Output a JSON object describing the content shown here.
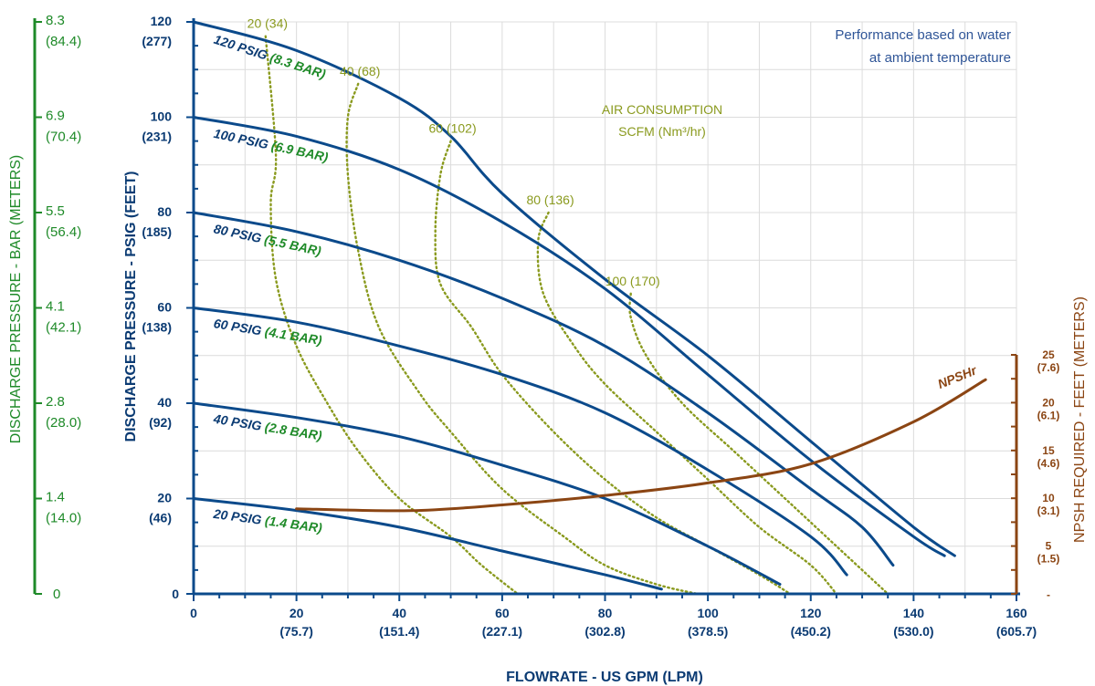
{
  "chart_data": {
    "type": "line",
    "title": "",
    "note": [
      "Performance based on water",
      "at ambient temperature"
    ],
    "xlabel": "FLOWRATE - US GPM (LPM)",
    "ylabel_left": "DISCHARGE PRESSURE  - PSIG (FEET)",
    "ylabel_outer": "DISCHARGE PRESSURE - BAR (METERS)",
    "ylabel_right": "NPSH REQUIRED - FEET (METERS)",
    "xlim": [
      0,
      160
    ],
    "ylim": [
      0,
      120
    ],
    "grid": true,
    "x_ticks": [
      {
        "v": 0,
        "l1": "0",
        "l2": ""
      },
      {
        "v": 20,
        "l1": "20",
        "l2": "(75.7)"
      },
      {
        "v": 40,
        "l1": "40",
        "l2": "(151.4)"
      },
      {
        "v": 60,
        "l1": "60",
        "l2": "(227.1)"
      },
      {
        "v": 80,
        "l1": "80",
        "l2": "(302.8)"
      },
      {
        "v": 100,
        "l1": "100",
        "l2": "(378.5)"
      },
      {
        "v": 120,
        "l1": "120",
        "l2": "(450.2)"
      },
      {
        "v": 140,
        "l1": "140",
        "l2": "(530.0)"
      },
      {
        "v": 160,
        "l1": "160",
        "l2": "(605.7)"
      }
    ],
    "y_ticks": [
      {
        "v": 0,
        "l1": "0",
        "l2": ""
      },
      {
        "v": 20,
        "l1": "20",
        "l2": "(46)"
      },
      {
        "v": 40,
        "l1": "40",
        "l2": "(92)"
      },
      {
        "v": 60,
        "l1": "60",
        "l2": "(138)"
      },
      {
        "v": 80,
        "l1": "80",
        "l2": "(185)"
      },
      {
        "v": 100,
        "l1": "100",
        "l2": "(231)"
      },
      {
        "v": 120,
        "l1": "120",
        "l2": "(277)"
      }
    ],
    "bar_ticks": [
      {
        "v": 0,
        "l1": "0",
        "l2": ""
      },
      {
        "v": 20,
        "l1": "1.4",
        "l2": "(14.0)"
      },
      {
        "v": 40,
        "l1": "2.8",
        "l2": "(28.0)"
      },
      {
        "v": 60,
        "l1": "4.1",
        "l2": "(42.1)"
      },
      {
        "v": 80,
        "l1": "5.5",
        "l2": "(56.4)"
      },
      {
        "v": 100,
        "l1": "6.9",
        "l2": "(70.4)"
      },
      {
        "v": 120,
        "l1": "8.3",
        "l2": "(84.4)"
      }
    ],
    "npsh_ticks": [
      {
        "v": 0,
        "l1": "-",
        "l2": ""
      },
      {
        "v": 5,
        "l1": "5",
        "l2": "(1.5)"
      },
      {
        "v": 10,
        "l1": "10",
        "l2": "(3.1)"
      },
      {
        "v": 15,
        "l1": "15",
        "l2": "(4.6)"
      },
      {
        "v": 20,
        "l1": "20",
        "l2": "(6.1)"
      },
      {
        "v": 25,
        "l1": "25",
        "l2": "(7.6)"
      }
    ],
    "npsh_ylim": [
      0,
      25
    ],
    "series": [
      {
        "name": "120 PSIG",
        "name2": "(8.3 BAR)",
        "color": "#0b4a8b",
        "points": [
          [
            0,
            120
          ],
          [
            20,
            114
          ],
          [
            40,
            104
          ],
          [
            50,
            96
          ],
          [
            60,
            84
          ],
          [
            80,
            66
          ],
          [
            100,
            50
          ],
          [
            120,
            32
          ],
          [
            140,
            14
          ],
          [
            148,
            8
          ]
        ]
      },
      {
        "name": "100 PSIG",
        "name2": "(6.9 BAR)",
        "color": "#0b4a8b",
        "points": [
          [
            0,
            100
          ],
          [
            20,
            96
          ],
          [
            40,
            89
          ],
          [
            60,
            78
          ],
          [
            80,
            64
          ],
          [
            100,
            46
          ],
          [
            120,
            28
          ],
          [
            140,
            12
          ],
          [
            146,
            8
          ]
        ]
      },
      {
        "name": "80 PSIG",
        "name2": "(5.5 BAR)",
        "color": "#0b4a8b",
        "points": [
          [
            0,
            80
          ],
          [
            20,
            76
          ],
          [
            40,
            70
          ],
          [
            60,
            62
          ],
          [
            80,
            52
          ],
          [
            100,
            38
          ],
          [
            120,
            22
          ],
          [
            130,
            14
          ],
          [
            136,
            6
          ]
        ]
      },
      {
        "name": "60 PSIG",
        "name2": "(4.1 BAR)",
        "color": "#0b4a8b",
        "points": [
          [
            0,
            60
          ],
          [
            20,
            57
          ],
          [
            40,
            52
          ],
          [
            60,
            46
          ],
          [
            80,
            38
          ],
          [
            100,
            26
          ],
          [
            120,
            12
          ],
          [
            127,
            4
          ]
        ]
      },
      {
        "name": "40 PSIG",
        "name2": "(2.8 BAR)",
        "color": "#0b4a8b",
        "points": [
          [
            0,
            40
          ],
          [
            20,
            37
          ],
          [
            40,
            33
          ],
          [
            60,
            27
          ],
          [
            80,
            20
          ],
          [
            100,
            10
          ],
          [
            114,
            2
          ]
        ]
      },
      {
        "name": "20 PSIG",
        "name2": "(1.4 BAR)",
        "color": "#0b4a8b",
        "points": [
          [
            0,
            20
          ],
          [
            20,
            17.5
          ],
          [
            40,
            14
          ],
          [
            60,
            9
          ],
          [
            80,
            4
          ],
          [
            91,
            1
          ]
        ]
      },
      {
        "name": "NPSHr",
        "name2": "",
        "color": "#8b4513",
        "axis": "npsh",
        "points": [
          [
            20,
            8.9
          ],
          [
            42,
            8.7
          ],
          [
            60,
            9.3
          ],
          [
            80,
            10.3
          ],
          [
            100,
            11.6
          ],
          [
            120,
            13.6
          ],
          [
            140,
            18
          ],
          [
            154,
            22.4
          ]
        ]
      }
    ],
    "air_lines": [
      {
        "label": "20 (34)",
        "points": [
          [
            14,
            117
          ],
          [
            16,
            92
          ],
          [
            15,
            82
          ],
          [
            16,
            66
          ],
          [
            20,
            52
          ],
          [
            26,
            40
          ],
          [
            32,
            30
          ],
          [
            40,
            20
          ],
          [
            50,
            12
          ],
          [
            56,
            6
          ],
          [
            63,
            0
          ]
        ]
      },
      {
        "label": "40 (68)",
        "points": [
          [
            32,
            107
          ],
          [
            30,
            100
          ],
          [
            30,
            88
          ],
          [
            32,
            72
          ],
          [
            36,
            56
          ],
          [
            44,
            42
          ],
          [
            50,
            34
          ],
          [
            60,
            22
          ],
          [
            72,
            12
          ],
          [
            80,
            6
          ],
          [
            90,
            2
          ],
          [
            98,
            0
          ]
        ]
      },
      {
        "label": "60 (102)",
        "points": [
          [
            50,
            95
          ],
          [
            48,
            88
          ],
          [
            47,
            76
          ],
          [
            48,
            65
          ],
          [
            54,
            56
          ],
          [
            60,
            46
          ],
          [
            70,
            34
          ],
          [
            80,
            24
          ],
          [
            90,
            16
          ],
          [
            100,
            10
          ],
          [
            110,
            4
          ],
          [
            116,
            0
          ]
        ]
      },
      {
        "label": "80 (136)",
        "points": [
          [
            69,
            80
          ],
          [
            67,
            74
          ],
          [
            68,
            63
          ],
          [
            74,
            52
          ],
          [
            80,
            44
          ],
          [
            90,
            34
          ],
          [
            100,
            24
          ],
          [
            110,
            14
          ],
          [
            120,
            6
          ],
          [
            125,
            0
          ]
        ]
      },
      {
        "label": "100 (170)",
        "points": [
          [
            85,
            63
          ],
          [
            85,
            58
          ],
          [
            88,
            50
          ],
          [
            95,
            40
          ],
          [
            105,
            30
          ],
          [
            115,
            20
          ],
          [
            125,
            10
          ],
          [
            135,
            0
          ]
        ]
      }
    ],
    "air_title": [
      "AIR CONSUMPTION",
      "SCFM (Nm³/hr)"
    ]
  }
}
